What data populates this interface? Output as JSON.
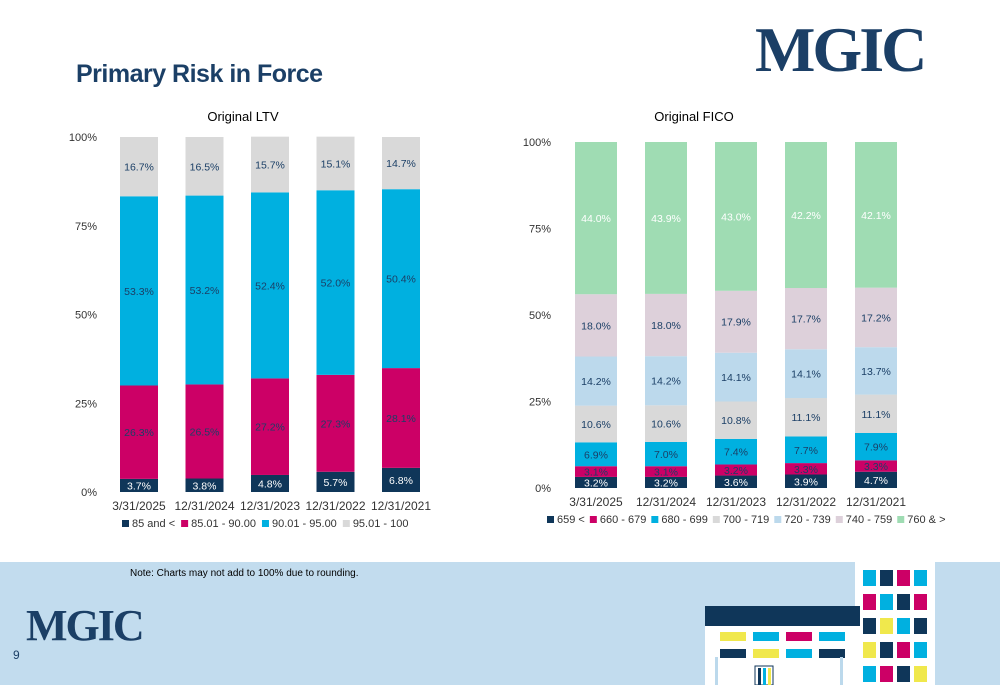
{
  "brand": {
    "logo_text": "MGIC"
  },
  "page": {
    "title": "Primary Risk in Force",
    "number": "9"
  },
  "footer": {
    "note": "Note: Charts may not add to 100% due to rounding."
  },
  "colors": {
    "navy": "#1b3f66",
    "bar_navy": "#0f3659",
    "magenta": "#cc0066",
    "cyan": "#00b0e0",
    "gray": "#d9d9d9",
    "light_blue": "#bcd9ec",
    "mauve": "#ddd0da",
    "green": "#9fdcb3"
  },
  "chart_data": [
    {
      "type": "bar",
      "stacked": true,
      "title": "Original LTV",
      "categories": [
        "3/31/2025",
        "12/31/2024",
        "12/31/2023",
        "12/31/2022",
        "12/31/2021"
      ],
      "ylim": [
        0,
        100
      ],
      "y_ticks": [
        "0%",
        "25%",
        "50%",
        "75%",
        "100%"
      ],
      "legend_position": "bottom",
      "series": [
        {
          "name": "85 and <",
          "color": "#0f3659",
          "label_color": "#ffffff",
          "values": [
            3.7,
            3.8,
            4.8,
            5.7,
            6.8
          ],
          "labels": [
            "3.7%",
            "3.8%",
            "4.8%",
            "5.7%",
            "6.8%"
          ]
        },
        {
          "name": "85.01 - 90.00",
          "color": "#cc0066",
          "label_color": "#1b3f66",
          "values": [
            26.3,
            26.5,
            27.2,
            27.3,
            28.1
          ],
          "labels": [
            "26.3%",
            "26.5%",
            "27.2%",
            "27.3%",
            "28.1%"
          ]
        },
        {
          "name": "90.01 - 95.00",
          "color": "#00b0e0",
          "label_color": "#1b3f66",
          "values": [
            53.3,
            53.2,
            52.4,
            52.0,
            50.4
          ],
          "labels": [
            "53.3%",
            "53.2%",
            "52.4%",
            "52.0%",
            "50.4%"
          ]
        },
        {
          "name": "95.01 - 100",
          "color": "#d9d9d9",
          "label_color": "#1b3f66",
          "values": [
            16.7,
            16.5,
            15.7,
            15.1,
            14.7
          ],
          "labels": [
            "16.7%",
            "16.5%",
            "15.7%",
            "15.1%",
            "14.7%"
          ]
        }
      ]
    },
    {
      "type": "bar",
      "stacked": true,
      "title": "Original FICO",
      "categories": [
        "3/31/2025",
        "12/31/2024",
        "12/31/2023",
        "12/31/2022",
        "12/31/2021"
      ],
      "ylim": [
        0,
        100
      ],
      "y_ticks": [
        "0%",
        "25%",
        "50%",
        "75%",
        "100%"
      ],
      "legend_position": "bottom",
      "series": [
        {
          "name": "659  <",
          "color": "#0f3659",
          "label_color": "#ffffff",
          "values": [
            3.2,
            3.2,
            3.6,
            3.9,
            4.7
          ],
          "labels": [
            "3.2%",
            "3.2%",
            "3.6%",
            "3.9%",
            "4.7%"
          ]
        },
        {
          "name": "660 - 679",
          "color": "#cc0066",
          "label_color": "#1b3f66",
          "values": [
            3.1,
            3.1,
            3.2,
            3.3,
            3.3
          ],
          "labels": [
            "3.1%",
            "3.1%",
            "3.2%",
            "3.3%",
            "3.3%"
          ]
        },
        {
          "name": "680 - 699",
          "color": "#00b0e0",
          "label_color": "#1b3f66",
          "values": [
            6.9,
            7.0,
            7.4,
            7.7,
            7.9
          ],
          "labels": [
            "6.9%",
            "7.0%",
            "7.4%",
            "7.7%",
            "7.9%"
          ]
        },
        {
          "name": "700 - 719",
          "color": "#d9d9d9",
          "label_color": "#1b3f66",
          "values": [
            10.6,
            10.6,
            10.8,
            11.1,
            11.1
          ],
          "labels": [
            "10.6%",
            "10.6%",
            "10.8%",
            "11.1%",
            "11.1%"
          ]
        },
        {
          "name": "720 - 739",
          "color": "#bcd9ec",
          "label_color": "#1b3f66",
          "values": [
            14.2,
            14.2,
            14.1,
            14.1,
            13.7
          ],
          "labels": [
            "14.2%",
            "14.2%",
            "14.1%",
            "14.1%",
            "13.7%"
          ]
        },
        {
          "name": "740 - 759",
          "color": "#ddd0da",
          "label_color": "#1b3f66",
          "values": [
            18.0,
            18.0,
            17.9,
            17.7,
            17.2
          ],
          "labels": [
            "18.0%",
            "18.0%",
            "17.9%",
            "17.7%",
            "17.2%"
          ]
        },
        {
          "name": "760 & >",
          "color": "#9fdcb3",
          "label_color": "#ffffff",
          "values": [
            44.0,
            43.9,
            43.0,
            42.2,
            42.1
          ],
          "labels": [
            "44.0%",
            "43.9%",
            "43.0%",
            "42.2%",
            "42.1%"
          ]
        }
      ]
    }
  ]
}
